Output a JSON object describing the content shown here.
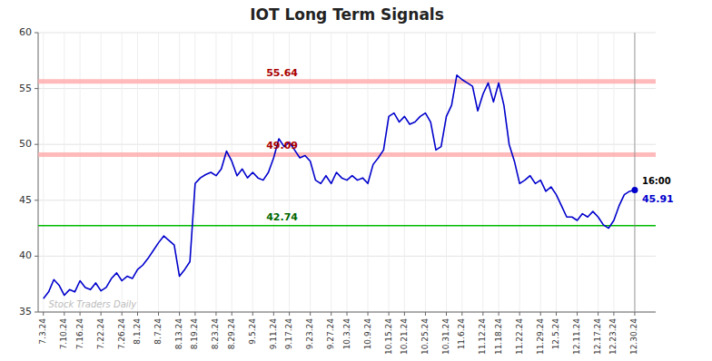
{
  "chart_data": {
    "type": "line",
    "title": "IOT Long Term Signals",
    "color": "#0000cc",
    "grid": true,
    "ylim": [
      35,
      60
    ],
    "yticks": [
      35,
      40,
      45,
      50,
      55,
      60
    ],
    "categories": [
      "7.3.24",
      null,
      null,
      null,
      "7.10.24",
      null,
      null,
      "7.16.24",
      null,
      null,
      null,
      "7.22.24",
      null,
      null,
      null,
      "7.26.24",
      null,
      null,
      "8.1.24",
      null,
      null,
      null,
      "8.7.24",
      null,
      null,
      null,
      "8.13.24",
      null,
      null,
      "8.19.24",
      null,
      null,
      null,
      "8.23.24",
      null,
      null,
      "8.29.24",
      null,
      null,
      null,
      "9.5.24",
      null,
      null,
      null,
      "9.11.24",
      null,
      null,
      "9.17.24",
      null,
      null,
      null,
      "9.23.24",
      null,
      null,
      null,
      "9.27.24",
      null,
      null,
      "10.3.24",
      null,
      null,
      null,
      "10.9.24",
      null,
      null,
      null,
      "10.15.24",
      null,
      null,
      "10.21.24",
      null,
      null,
      null,
      "10.25.24",
      null,
      null,
      null,
      "10.31.24",
      null,
      null,
      "11.6.24",
      null,
      null,
      null,
      "11.12.24",
      null,
      null,
      "11.18.24",
      null,
      null,
      null,
      "11.22.24",
      null,
      null,
      null,
      "11.29.24",
      null,
      null,
      "12.5.24",
      null,
      null,
      null,
      "12.11.24",
      null,
      null,
      null,
      "12.17.24",
      null,
      null,
      "12.23.24",
      null,
      null,
      null,
      "12.30.24"
    ],
    "values": [
      36.2,
      36.8,
      37.9,
      37.4,
      36.5,
      37.0,
      36.8,
      37.8,
      37.2,
      37.0,
      37.6,
      36.9,
      37.2,
      38.0,
      38.5,
      37.8,
      38.2,
      38.0,
      38.8,
      39.2,
      39.8,
      40.5,
      41.2,
      41.8,
      41.4,
      41.0,
      38.2,
      38.8,
      39.5,
      46.5,
      47.0,
      47.3,
      47.5,
      47.2,
      47.8,
      49.4,
      48.5,
      47.2,
      47.8,
      47.0,
      47.5,
      47.0,
      46.8,
      47.5,
      48.8,
      50.5,
      49.8,
      50.2,
      49.5,
      48.8,
      49.0,
      48.5,
      46.8,
      46.5,
      47.2,
      46.5,
      47.5,
      47.0,
      46.8,
      47.2,
      46.8,
      47.0,
      46.5,
      48.2,
      48.8,
      49.5,
      52.5,
      52.8,
      52.0,
      52.5,
      51.8,
      52.0,
      52.5,
      52.8,
      52.0,
      49.5,
      49.8,
      52.5,
      53.5,
      56.2,
      55.8,
      55.5,
      55.2,
      53.0,
      54.5,
      55.5,
      53.8,
      55.5,
      53.5,
      50.0,
      48.5,
      46.5,
      46.8,
      47.2,
      46.5,
      46.8,
      45.8,
      46.2,
      45.5,
      44.5,
      43.5,
      43.5,
      43.2,
      43.8,
      43.5,
      44.0,
      43.5,
      42.8,
      42.5,
      43.2,
      44.5,
      45.5,
      45.8,
      45.91
    ],
    "reference_lines": [
      {
        "value": 55.64,
        "color": "#ffaaaa",
        "label_color": "#aa0000"
      },
      {
        "value": 49.09,
        "color": "#ffaaaa",
        "label_color": "#aa0000"
      },
      {
        "value": 42.74,
        "color": "#00bb00",
        "label_color": "#006600"
      }
    ],
    "end_annotations": [
      "16:00",
      "45.91"
    ],
    "watermark": "Stock Traders Daily"
  }
}
